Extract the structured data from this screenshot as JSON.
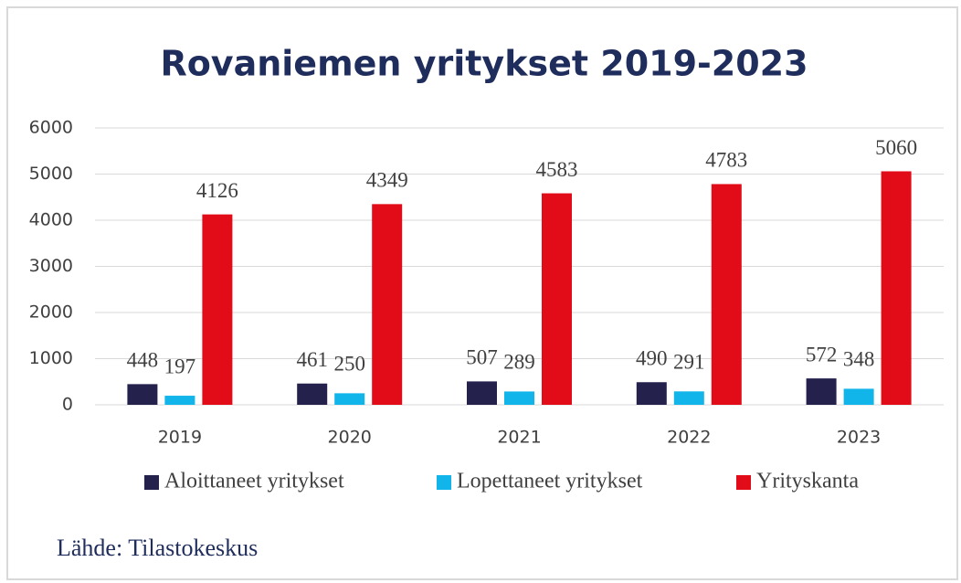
{
  "chart_data": {
    "type": "bar",
    "title": "Rovaniemen yritykset 2019-2023",
    "source": "Lähde: Tilastokeskus",
    "categories": [
      "2019",
      "2020",
      "2021",
      "2022",
      "2023"
    ],
    "series": [
      {
        "name": "Aloittaneet yritykset",
        "color": "#24214d",
        "values": [
          448,
          461,
          507,
          490,
          572
        ]
      },
      {
        "name": "Lopettaneet yritykset",
        "color": "#12b5ea",
        "values": [
          197,
          250,
          289,
          291,
          348
        ]
      },
      {
        "name": "Yrityskanta",
        "color": "#e20b18",
        "values": [
          4126,
          4349,
          4583,
          4783,
          5060
        ]
      }
    ],
    "ylim": [
      0,
      6000
    ],
    "yticks": [
      0,
      1000,
      2000,
      3000,
      4000,
      5000,
      6000
    ],
    "grid": true,
    "legend": "bottom"
  }
}
